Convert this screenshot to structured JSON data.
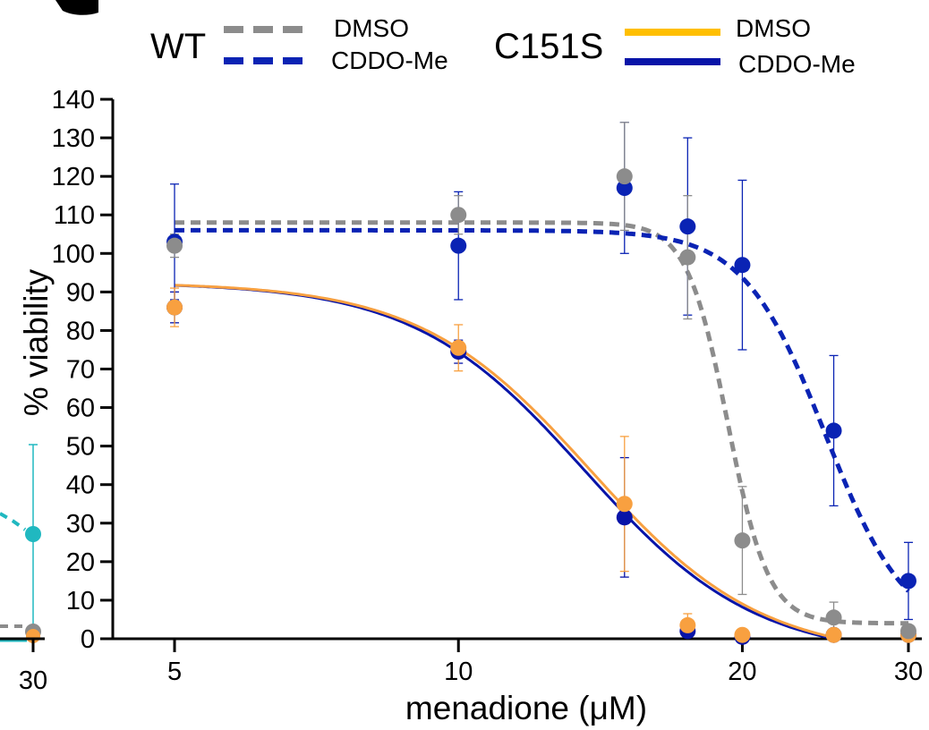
{
  "legend": {
    "wt_label": "WT",
    "c151s_label": "C151S",
    "entries": [
      "DMSO",
      "CDDO-Me",
      "DMSO",
      "CDDO-Me"
    ]
  },
  "left_panel": {
    "tick_label": "30"
  },
  "colors": {
    "wt_dmso": "#8c8c8c",
    "wt_cddo": "#0a23b4",
    "c151s_dmso": "#f8a040",
    "c151s_cddo": "#0814a8",
    "teal": "#20b8c0",
    "legend_orange": "#ffbf00"
  },
  "chart_data": {
    "type": "scatter",
    "xlabel": "menadione (μM)",
    "ylabel": "% viability",
    "x_scale": "log",
    "xlim": [
      4.3,
      31
    ],
    "ylim": [
      0,
      140
    ],
    "xticks": [
      5,
      10,
      20,
      30
    ],
    "yticks": [
      0,
      10,
      20,
      30,
      40,
      50,
      60,
      70,
      80,
      90,
      100,
      110,
      120,
      130,
      140
    ],
    "series": [
      {
        "key": "wt_dmso",
        "group": "WT",
        "name": "DMSO",
        "line": "dashed",
        "points": [
          {
            "x": 5,
            "y": 102,
            "err": 3
          },
          {
            "x": 10,
            "y": 110,
            "err": 5
          },
          {
            "x": 15,
            "y": 120,
            "err": 14
          },
          {
            "x": 17.5,
            "y": 99,
            "err": 16
          },
          {
            "x": 20,
            "y": 25.5,
            "err": 14
          },
          {
            "x": 25,
            "y": 5.5,
            "err": 4
          },
          {
            "x": 30,
            "y": 2,
            "err": 1
          }
        ],
        "fit": {
          "top": 108,
          "bottom": 4,
          "ec50": 19.3,
          "hill": 20
        }
      },
      {
        "key": "wt_cddo",
        "group": "WT",
        "name": "CDDO-Me",
        "line": "dashed",
        "points": [
          {
            "x": 5,
            "y": 103,
            "err": 15
          },
          {
            "x": 10,
            "y": 102,
            "err": 14
          },
          {
            "x": 15,
            "y": 117,
            "err": 17
          },
          {
            "x": 17.5,
            "y": 107,
            "err": 23
          },
          {
            "x": 20,
            "y": 97,
            "err": 22
          },
          {
            "x": 25,
            "y": 54,
            "err": 19.5
          },
          {
            "x": 30,
            "y": 15,
            "err": 10
          }
        ],
        "fit": {
          "top": 106,
          "bottom": 0,
          "ec50": 24.5,
          "hill": 10
        }
      },
      {
        "key": "c151s_dmso",
        "group": "C151S",
        "name": "DMSO",
        "line": "solid",
        "points": [
          {
            "x": 5,
            "y": 86,
            "err": 5
          },
          {
            "x": 10,
            "y": 75.5,
            "err": 6
          },
          {
            "x": 15,
            "y": 35,
            "err": 17.5
          },
          {
            "x": 17.5,
            "y": 3.5,
            "err": 3
          },
          {
            "x": 20,
            "y": 1,
            "err": 0
          },
          {
            "x": 25,
            "y": 1,
            "err": 0
          },
          {
            "x": 30,
            "y": 1,
            "err": 0
          }
        ],
        "fit": {
          "top": 92.5,
          "bottom": -5,
          "ec50": 13.8,
          "hill": 4.8
        }
      },
      {
        "key": "c151s_cddo",
        "group": "C151S",
        "name": "CDDO-Me",
        "line": "solid",
        "points": [
          {
            "x": 5,
            "y": 86,
            "err": 4
          },
          {
            "x": 10,
            "y": 74.5,
            "err": 3
          },
          {
            "x": 15,
            "y": 31.5,
            "err": 15.5
          },
          {
            "x": 17.5,
            "y": 2,
            "err": 0
          },
          {
            "x": 20,
            "y": 0.5,
            "err": 0
          },
          {
            "x": 25,
            "y": 1,
            "err": 0
          },
          {
            "x": 30,
            "y": 1,
            "err": 0
          }
        ],
        "fit": {
          "top": 92.5,
          "bottom": -5,
          "ec50": 13.6,
          "hill": 4.8
        }
      }
    ]
  }
}
